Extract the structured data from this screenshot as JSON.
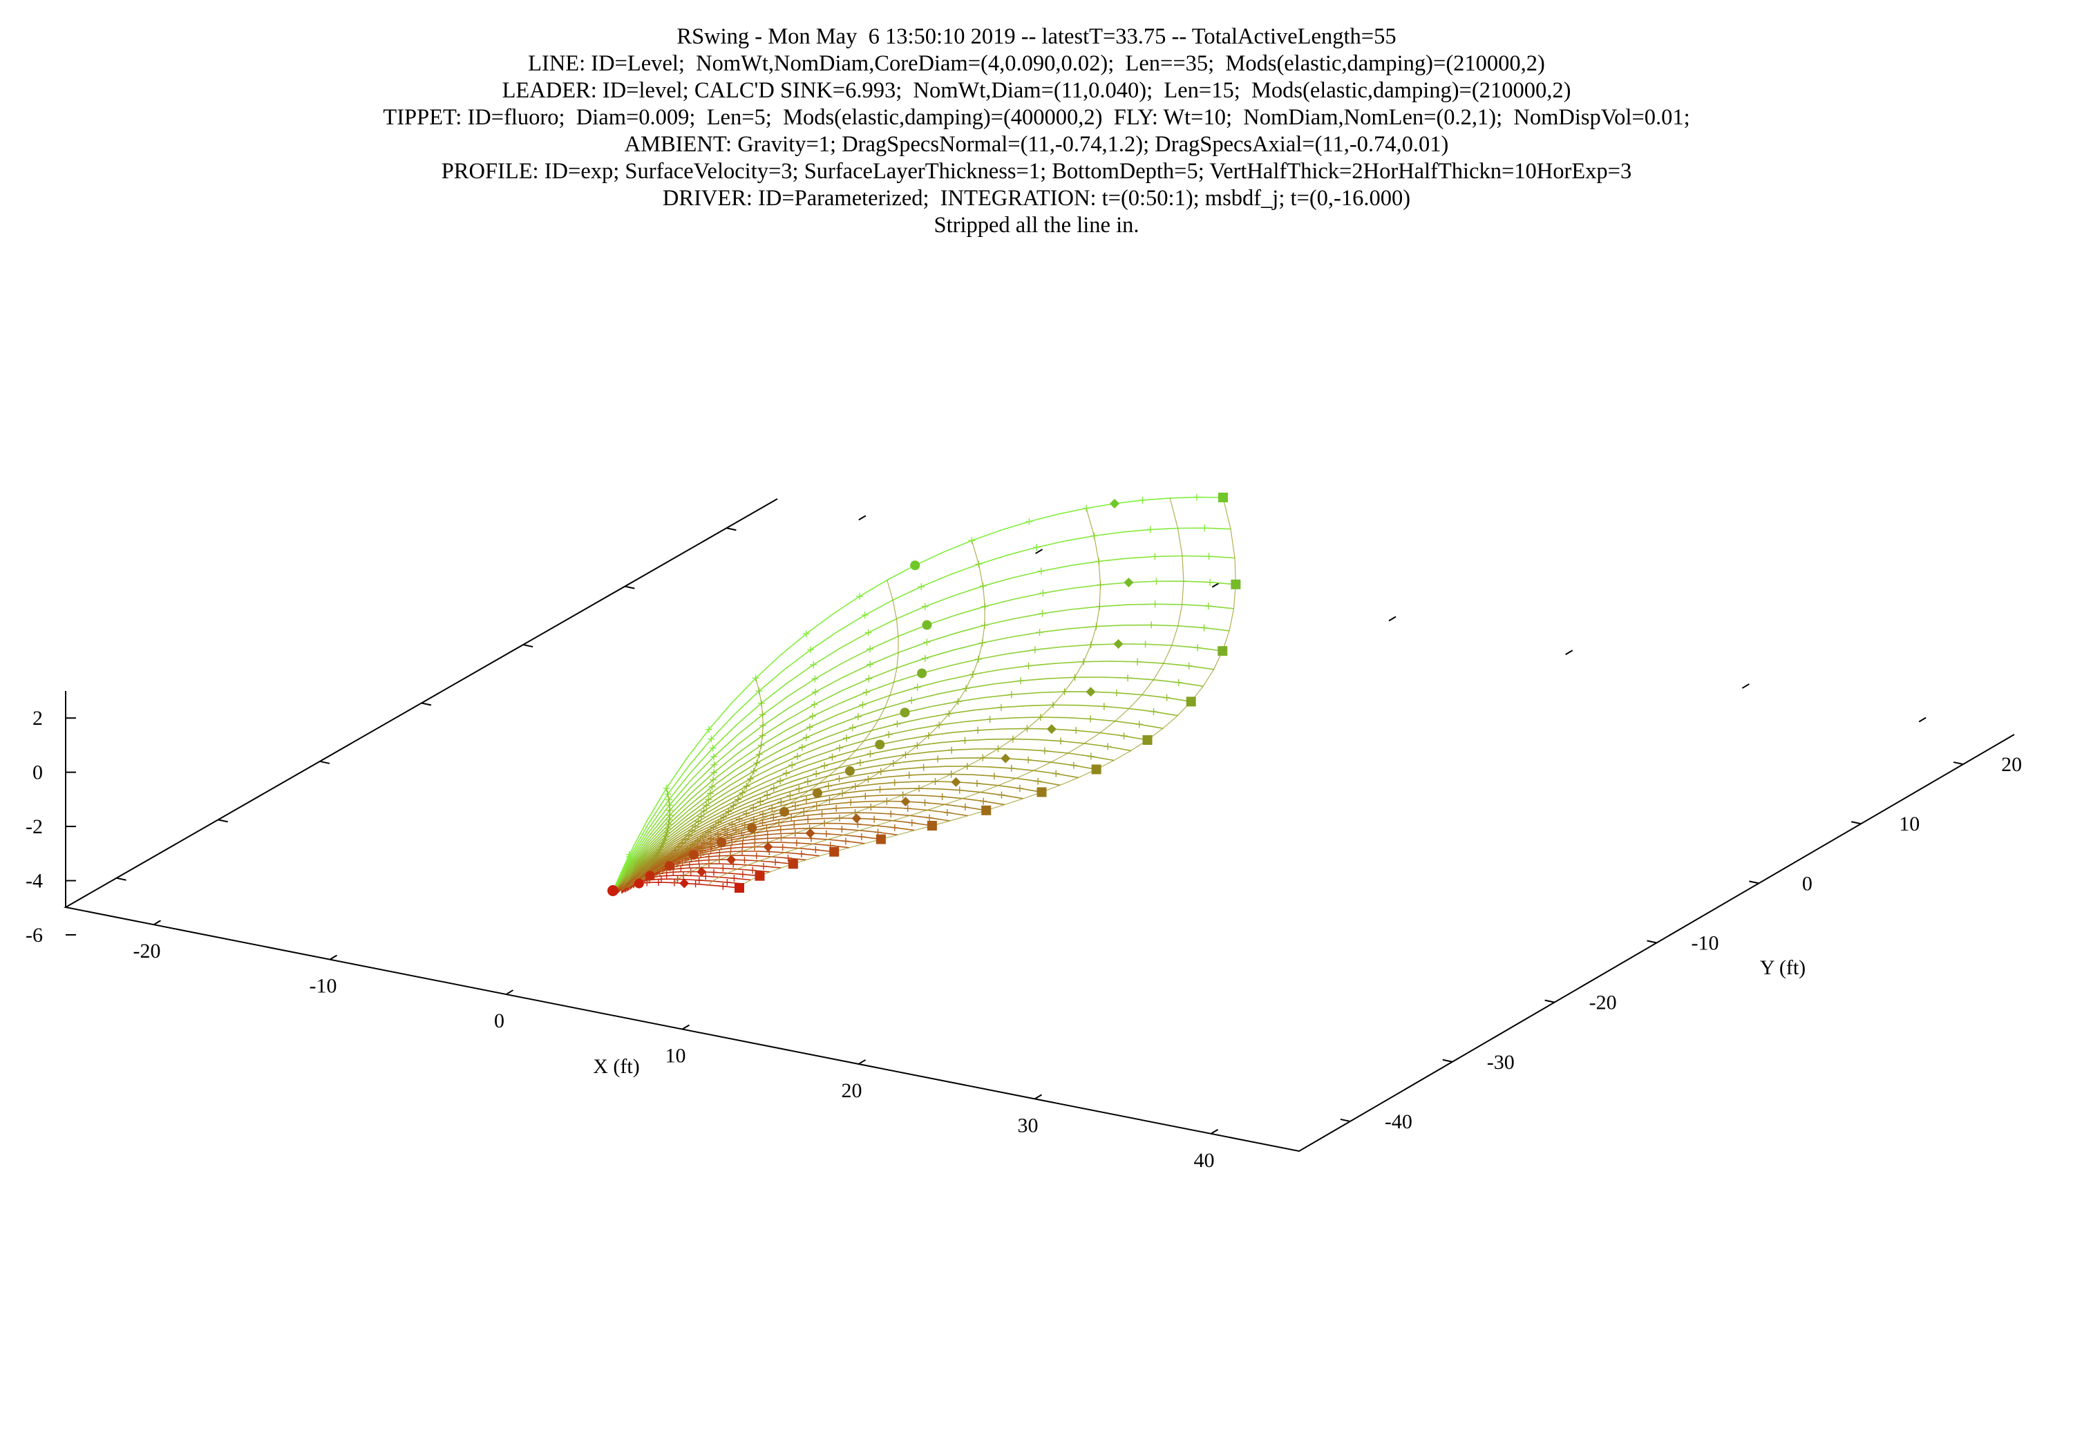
{
  "chart_data": {
    "type": "line",
    "title_lines": [
      "RSwing - Mon May  6 13:50:10 2019 -- latestT=33.75 -- TotalActiveLength=55",
      "LINE: ID=Level;  NomWt,NomDiam,CoreDiam=(4,0.090,0.02);  Len==35;  Mods(elastic,damping)=(210000,2)",
      "LEADER: ID=level; CALC'D SINK=6.993;  NomWt,Diam=(11,0.040);  Len=15;  Mods(elastic,damping)=(210000,2)",
      "TIPPET: ID=fluoro;  Diam=0.009;  Len=5;  Mods(elastic,damping)=(400000,2)  FLY: Wt=10;  NomDiam,NomLen=(0.2,1);  NomDispVol=0.01;",
      "AMBIENT: Gravity=1; DragSpecsNormal=(11,-0.74,1.2); DragSpecsAxial=(11,-0.74,0.01)",
      "PROFILE: ID=exp; SurfaceVelocity=3; SurfaceLayerThickness=1; BottomDepth=5; VertHalfThick=2HorHalfThickn=10HorExp=3",
      "DRIVER: ID=Parameterized;  INTEGRATION: t=(0:50:1); msbdf_j; t=(0,-16.000)",
      "Stripped all the line in."
    ],
    "xlabel": "X (ft)",
    "ylabel": "Y (ft)",
    "zlabel": "",
    "x_ticks": [
      "-20",
      "-10",
      "0",
      "10",
      "20",
      "30",
      "40"
    ],
    "y_ticks": [
      "-40",
      "-30",
      "-20",
      "-10",
      "0",
      "10",
      "20"
    ],
    "z_ticks": [
      "2",
      "0",
      "-2",
      "-4",
      "-6"
    ],
    "xlim": [
      -25,
      45
    ],
    "ylim": [
      -45,
      25
    ],
    "zlim": [
      -6,
      3
    ],
    "color_start": "#c81e0a",
    "color_end": "#82f03c",
    "marker_color_start": "#c81e0a",
    "marker_color_end": "#6ec82a"
  }
}
